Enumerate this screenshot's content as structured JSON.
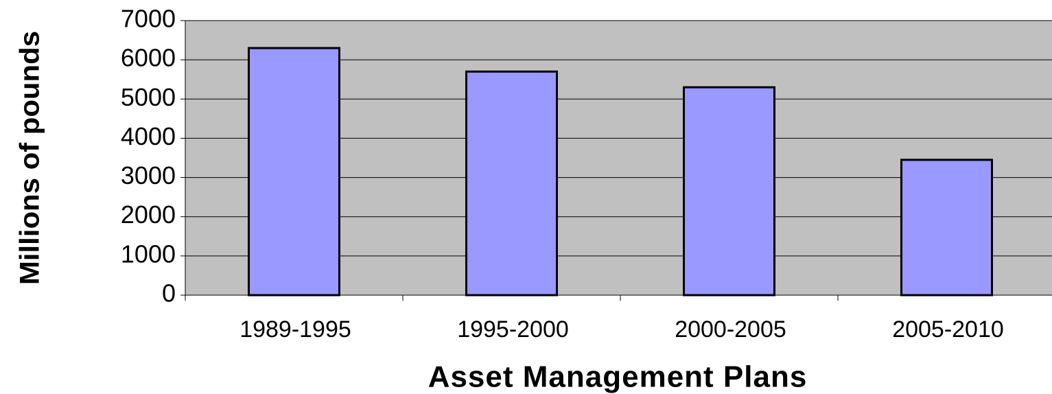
{
  "chart_data": {
    "type": "bar",
    "x_label": "Asset Management Plans",
    "y_label": "Millions of pounds",
    "categories": [
      "1989-1995",
      "1995-2000",
      "2000-2005",
      "2005-2010"
    ],
    "values": [
      6300,
      5700,
      5300,
      3450
    ],
    "color": "#9999ff",
    "plot_background": "#c0c0c0",
    "ylim": [
      0,
      7000
    ],
    "yticks": [
      0,
      1000,
      2000,
      3000,
      4000,
      5000,
      6000,
      7000
    ],
    "grid": true
  }
}
